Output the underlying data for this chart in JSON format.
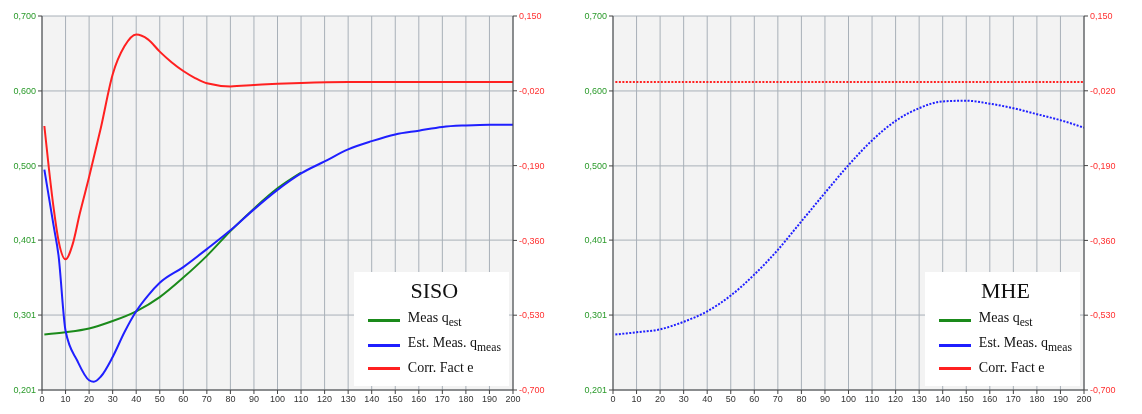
{
  "chart_data": [
    {
      "type": "line",
      "legend_title": "SISO",
      "legend": "bottom right",
      "grid": true,
      "line_style": "solid",
      "xlim": [
        0,
        200
      ],
      "xticks": [
        0,
        10,
        20,
        30,
        40,
        50,
        60,
        70,
        80,
        90,
        100,
        110,
        120,
        130,
        140,
        150,
        160,
        170,
        180,
        190,
        200
      ],
      "ylim": [
        0.201,
        0.7
      ],
      "yticks": [
        {
          "value": 0.201,
          "label": "0,201"
        },
        {
          "value": 0.301,
          "label": "0,301"
        },
        {
          "value": 0.401,
          "label": "0,401"
        },
        {
          "value": 0.5,
          "label": "0,500"
        },
        {
          "value": 0.6,
          "label": "0,600"
        },
        {
          "value": 0.7,
          "label": "0,700"
        }
      ],
      "y2lim": [
        -0.7,
        0.15
      ],
      "y2ticks": [
        {
          "value": -0.7,
          "label": "-0,700"
        },
        {
          "value": -0.53,
          "label": "-0,530"
        },
        {
          "value": -0.36,
          "label": "-0,360"
        },
        {
          "value": -0.19,
          "label": "-0,190"
        },
        {
          "value": -0.02,
          "label": "-0,020"
        },
        {
          "value": 0.15,
          "label": "0,150"
        }
      ],
      "series": [
        {
          "name": "Meas q$_{est}$",
          "color": "#1a8a1a",
          "x": [
            1,
            10,
            20,
            30,
            40,
            50,
            60,
            70,
            80,
            90,
            100,
            110
          ],
          "values": [
            0.275,
            0.278,
            0.283,
            0.293,
            0.306,
            0.325,
            0.351,
            0.38,
            0.413,
            0.443,
            0.47,
            0.491
          ]
        },
        {
          "name": "Est. Meas. q$_{meas}$",
          "color": "#1f1fff",
          "x": [
            1,
            3,
            5,
            7,
            10,
            15,
            20,
            22,
            25,
            30,
            35,
            40,
            45,
            50,
            60,
            70,
            80,
            90,
            100,
            110,
            120,
            130,
            140,
            150,
            160,
            170,
            180,
            190,
            200
          ],
          "values": [
            0.495,
            0.457,
            0.419,
            0.381,
            0.28,
            0.24,
            0.214,
            0.212,
            0.219,
            0.245,
            0.278,
            0.306,
            0.327,
            0.344,
            0.365,
            0.389,
            0.414,
            0.442,
            0.468,
            0.49,
            0.506,
            0.522,
            0.533,
            0.542,
            0.547,
            0.552,
            0.554,
            0.555,
            0.555
          ]
        },
        {
          "name": "Corr. Fact e",
          "color": "#ff2020",
          "axis": "y2",
          "x": [
            1,
            3,
            5,
            7,
            10,
            13,
            16,
            20,
            25,
            30,
            35,
            40,
            45,
            50,
            55,
            60,
            65,
            70,
            80,
            90,
            100,
            110,
            130,
            200
          ],
          "values": [
            -0.1,
            -0.2,
            -0.289,
            -0.36,
            -0.403,
            -0.369,
            -0.3,
            -0.216,
            -0.104,
            0.017,
            0.081,
            0.108,
            0.097,
            0.069,
            0.045,
            0.025,
            0.009,
            -0.003,
            -0.01,
            -0.007,
            -0.004,
            -0.002,
            0.0,
            0.0
          ]
        }
      ]
    },
    {
      "type": "line",
      "legend_title": "MHE",
      "legend": "bottom right",
      "grid": true,
      "line_style": "dotted",
      "xlim": [
        0,
        200
      ],
      "xticks": [
        0,
        10,
        20,
        30,
        40,
        50,
        60,
        70,
        80,
        90,
        100,
        110,
        120,
        130,
        140,
        150,
        160,
        170,
        180,
        190,
        200
      ],
      "ylim": [
        0.201,
        0.7
      ],
      "yticks": [
        {
          "value": 0.201,
          "label": "0,201"
        },
        {
          "value": 0.301,
          "label": "0,301"
        },
        {
          "value": 0.401,
          "label": "0,401"
        },
        {
          "value": 0.5,
          "label": "0,500"
        },
        {
          "value": 0.6,
          "label": "0,600"
        },
        {
          "value": 0.7,
          "label": "0,700"
        }
      ],
      "y2lim": [
        -0.7,
        0.15
      ],
      "y2ticks": [
        {
          "value": -0.7,
          "label": "-0,700"
        },
        {
          "value": -0.53,
          "label": "-0,530"
        },
        {
          "value": -0.36,
          "label": "-0,360"
        },
        {
          "value": -0.19,
          "label": "-0,190"
        },
        {
          "value": -0.02,
          "label": "-0,020"
        },
        {
          "value": 0.15,
          "label": "0,150"
        }
      ],
      "series": [
        {
          "name": "Meas q$_{est}$",
          "color": "#1a8a1a"
        },
        {
          "name": "Est. Meas. q$_{meas}$",
          "color": "#1f1fff",
          "x": [
            1,
            10,
            20,
            30,
            40,
            50,
            60,
            70,
            80,
            90,
            100,
            110,
            120,
            130,
            140,
            150,
            160,
            170,
            180,
            190,
            200
          ],
          "values": [
            0.275,
            0.278,
            0.282,
            0.292,
            0.306,
            0.327,
            0.355,
            0.388,
            0.426,
            0.464,
            0.501,
            0.534,
            0.56,
            0.577,
            0.586,
            0.587,
            0.583,
            0.577,
            0.569,
            0.561,
            0.551
          ]
        },
        {
          "name": "Corr. Fact e",
          "color": "#ff2020",
          "axis": "y2",
          "x": [
            1,
            200
          ],
          "values": [
            0.0,
            0.0
          ]
        }
      ]
    }
  ]
}
